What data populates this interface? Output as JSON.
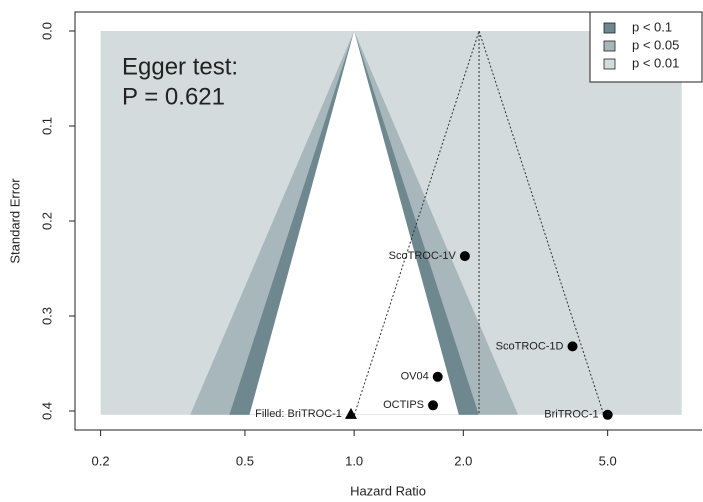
{
  "chart_data": {
    "type": "funnel",
    "annotations": [
      "Egger test:",
      "P = 0.621"
    ],
    "xlabel": "Hazard Ratio",
    "ylabel": "Standard Error",
    "xscale": "log",
    "xlim": [
      0.17,
      9.1
    ],
    "ylim": [
      0.42,
      -0.02
    ],
    "xticks": [
      0.2,
      0.5,
      {
        "value": 1.0,
        "label": "1.0"
      },
      {
        "value": 2.0,
        "label": "2.0"
      },
      {
        "value": 5.0,
        "label": "5.0"
      }
    ],
    "yticks": [
      {
        "value": 0,
        "label": "0.0"
      },
      0.1,
      0.2,
      0.3,
      0.4
    ],
    "contour_center": 1.0,
    "contour_xlim": [
      0.2,
      8.0
    ],
    "contours": [
      {
        "name": "p < 0.1",
        "p": 0.1,
        "color": "#6f8890"
      },
      {
        "name": "p < 0.05",
        "p": 0.05,
        "color": "#a8b7bc"
      },
      {
        "name": "p < 0.01",
        "p": 0.01,
        "color": "#d4dbdd"
      }
    ],
    "pooled_estimate": 2.21,
    "funnel_p": 0.05,
    "legend": "top-right",
    "studies": {
      "names": [
        "ScoTROC-1V",
        "ScoTROC-1D",
        "OV04",
        "OCTIPS",
        "BriTROC-1"
      ],
      "x": [
        2.02,
        4.0,
        1.7,
        1.65,
        5.0
      ],
      "values": [
        0.237,
        0.332,
        0.364,
        0.394,
        0.404
      ],
      "color": "#000000"
    },
    "filled": {
      "names": [
        "Filled: BriTROC-1"
      ],
      "x": [
        0.98
      ],
      "values": [
        0.403
      ],
      "color": "#000000"
    }
  }
}
